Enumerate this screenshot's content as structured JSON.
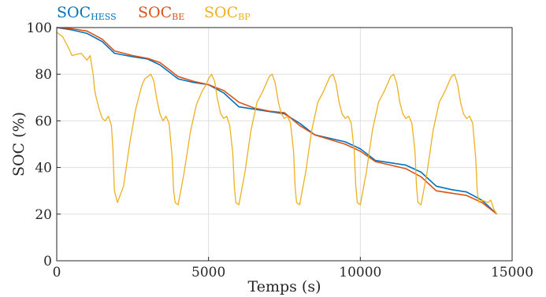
{
  "chart_data": {
    "type": "line",
    "title": "",
    "xlabel": "Temps (s)",
    "ylabel": "SOC (%)",
    "xlim": [
      0,
      15000
    ],
    "ylim": [
      0,
      100
    ],
    "xticks": [
      0,
      5000,
      10000,
      15000
    ],
    "yticks": [
      0,
      20,
      40,
      60,
      80,
      100
    ],
    "grid": true,
    "legend_placement": "top-left, above plot",
    "series": [
      {
        "name": "SOC_HESS",
        "name_main": "SOC",
        "name_sub": "HESS",
        "color": "#0072BD",
        "x": [
          0,
          500,
          1000,
          1500,
          1900,
          2500,
          3000,
          3400,
          3700,
          4000,
          4500,
          5000,
          5500,
          6000,
          6500,
          7000,
          7500,
          8000,
          8500,
          9000,
          9500,
          10000,
          10500,
          11000,
          11500,
          12000,
          12500,
          13000,
          13500,
          14000,
          14500
        ],
        "y": [
          100,
          99,
          97.5,
          94,
          89,
          87.5,
          86.5,
          84,
          81,
          78,
          76.5,
          75.5,
          72,
          66,
          65,
          64,
          63,
          59,
          54,
          52.5,
          51,
          48,
          43,
          42,
          41,
          38,
          32,
          30.5,
          29.5,
          26,
          20
        ]
      },
      {
        "name": "SOC_BE",
        "name_main": "SOC",
        "name_sub": "BE",
        "color": "#D95319",
        "x": [
          0,
          500,
          1000,
          1500,
          1900,
          2500,
          3000,
          3400,
          3700,
          4000,
          4500,
          5000,
          5500,
          6000,
          6500,
          7000,
          7500,
          8000,
          8500,
          9000,
          9500,
          10000,
          10500,
          11000,
          11500,
          12000,
          12500,
          13000,
          13500,
          14000,
          14500
        ],
        "y": [
          100,
          99.5,
          98.5,
          95,
          90,
          88,
          86.8,
          85,
          82,
          79,
          77,
          75.5,
          73,
          68,
          65.5,
          64.2,
          63.5,
          58,
          54,
          52,
          50,
          47,
          42.5,
          41,
          39.5,
          36,
          30,
          29,
          28,
          25,
          20
        ]
      },
      {
        "name": "SOC_BP",
        "name_main": "SOC",
        "name_sub": "BP",
        "color": "#EDB120",
        "x": [
          0,
          200,
          400,
          500,
          800,
          1000,
          1100,
          1200,
          1250,
          1300,
          1400,
          1500,
          1600,
          1700,
          1800,
          1850,
          1900,
          2000,
          2200,
          2400,
          2600,
          2800,
          2900,
          3000,
          3100,
          3200,
          3300,
          3400,
          3500,
          3600,
          3700,
          3800,
          3850,
          3900,
          4000,
          4200,
          4400,
          4600,
          4800,
          4900,
          5000,
          5100,
          5200,
          5300,
          5400,
          5500,
          5600,
          5700,
          5800,
          5850,
          5900,
          6000,
          6200,
          6400,
          6600,
          6800,
          6900,
          7000,
          7100,
          7200,
          7300,
          7400,
          7500,
          7600,
          7700,
          7800,
          7850,
          7900,
          8000,
          8200,
          8400,
          8600,
          8800,
          8900,
          9000,
          9100,
          9200,
          9300,
          9400,
          9500,
          9600,
          9700,
          9800,
          9850,
          9900,
          10000,
          10200,
          10400,
          10600,
          10800,
          10900,
          11000,
          11100,
          11200,
          11300,
          11400,
          11500,
          11600,
          11700,
          11800,
          11850,
          11900,
          12000,
          12200,
          12400,
          12600,
          12800,
          12900,
          13000,
          13100,
          13200,
          13300,
          13400,
          13500,
          13600,
          13700,
          13800,
          13850,
          13900,
          14000,
          14200,
          14300,
          14400,
          14500
        ],
        "y": [
          98,
          96,
          91,
          88,
          89,
          86,
          88,
          80,
          73,
          70,
          65,
          61,
          60,
          62,
          58,
          48,
          30,
          25,
          32,
          50,
          65,
          75,
          78,
          79,
          80,
          77,
          69,
          63,
          60,
          62,
          59,
          45,
          30,
          25,
          24,
          38,
          55,
          67,
          73,
          75,
          78,
          80,
          77,
          69,
          63,
          61,
          62,
          58,
          46,
          32,
          25,
          24,
          38,
          56,
          68,
          73,
          76,
          79,
          80,
          76,
          68,
          63,
          61,
          62,
          59,
          47,
          32,
          25,
          24,
          38,
          56,
          68,
          73,
          76,
          79,
          80,
          76,
          68,
          63,
          61,
          62,
          59,
          47,
          32,
          25,
          24,
          38,
          56,
          68,
          73,
          76,
          79,
          80,
          76,
          68,
          63,
          61,
          62,
          59,
          47,
          32,
          25,
          24,
          38,
          56,
          68,
          73,
          76,
          79,
          80,
          76,
          68,
          63,
          61,
          62,
          59,
          44,
          30,
          25,
          26,
          25,
          26,
          22,
          20
        ]
      }
    ]
  }
}
